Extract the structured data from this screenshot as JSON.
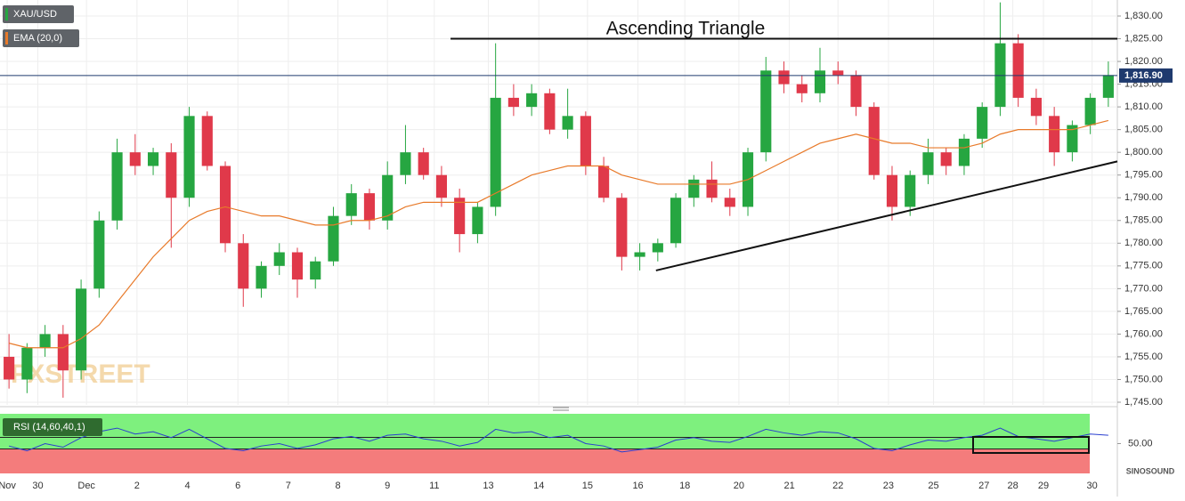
{
  "chart_data": {
    "type": "candlestick",
    "title": "Ascending Triangle",
    "symbol": "XAU/USD",
    "watermark": "FXSTREET",
    "logo": "SINOSOUND",
    "x": [
      0.5,
      1.5,
      2.5,
      3.5,
      4.5,
      5.5,
      6.5,
      7.5,
      8.5,
      9.5,
      10.5,
      11.5,
      12.5,
      13.5,
      14.5,
      15.5,
      16.5,
      17.5,
      18.5,
      19.5,
      20.5,
      21.5,
      22.5,
      23.5,
      24.5,
      25.5,
      26.5,
      27.5,
      28.5,
      29.5,
      30.5,
      31.5,
      32.5,
      33.5,
      34.5,
      35.5,
      36.5,
      37.5,
      38.5,
      39.5,
      40.5,
      41.5,
      42.5,
      43.5,
      44.5,
      45.5,
      46.5,
      47.5,
      48.5,
      49.5,
      50.5,
      51.5,
      52.5,
      53.5,
      54.5,
      55.5,
      56.5,
      57.5,
      58.5,
      59.5,
      60.5,
      61.5
    ],
    "open": [
      1755,
      1750,
      1757,
      1760,
      1752,
      1770,
      1785,
      1800,
      1797,
      1800,
      1790,
      1808,
      1797,
      1780,
      1770,
      1775,
      1778,
      1772,
      1776,
      1786,
      1791,
      1785,
      1795,
      1800,
      1795,
      1790,
      1782,
      1788,
      1812,
      1810,
      1813,
      1805,
      1808,
      1797,
      1790,
      1777,
      1778,
      1780,
      1790,
      1794,
      1790,
      1788,
      1800,
      1818,
      1815,
      1813,
      1818,
      1817,
      1810,
      1795,
      1788,
      1795,
      1800,
      1797,
      1803,
      1810,
      1824,
      1812,
      1808,
      1800,
      1806,
      1812
    ],
    "high": [
      1760,
      1758,
      1762,
      1762,
      1772,
      1787,
      1803,
      1804,
      1801,
      1802,
      1810,
      1809,
      1798,
      1782,
      1776,
      1780,
      1779,
      1777,
      1788,
      1793,
      1792,
      1798,
      1806,
      1801,
      1797,
      1792,
      1789,
      1824,
      1815,
      1815,
      1814,
      1814,
      1809,
      1799,
      1791,
      1780,
      1781,
      1791,
      1795,
      1798,
      1792,
      1801,
      1821,
      1820,
      1817,
      1823,
      1820,
      1818,
      1811,
      1797,
      1796,
      1803,
      1801,
      1804,
      1811,
      1833,
      1826,
      1814,
      1810,
      1807,
      1813,
      1820
    ],
    "low": [
      1748,
      1747,
      1755,
      1746,
      1750,
      1768,
      1783,
      1795,
      1795,
      1779,
      1788,
      1796,
      1778,
      1766,
      1768,
      1773,
      1768,
      1770,
      1775,
      1784,
      1783,
      1783,
      1793,
      1794,
      1788,
      1778,
      1780,
      1786,
      1808,
      1808,
      1804,
      1803,
      1795,
      1789,
      1774,
      1774,
      1776,
      1779,
      1788,
      1789,
      1786,
      1786,
      1798,
      1813,
      1811,
      1811,
      1815,
      1808,
      1794,
      1785,
      1786,
      1793,
      1795,
      1795,
      1801,
      1808,
      1810,
      1806,
      1797,
      1798,
      1804,
      1810
    ],
    "close": [
      1750,
      1757,
      1760,
      1752,
      1770,
      1785,
      1800,
      1797,
      1800,
      1790,
      1808,
      1797,
      1780,
      1770,
      1775,
      1778,
      1772,
      1776,
      1786,
      1791,
      1785,
      1795,
      1800,
      1795,
      1790,
      1782,
      1788,
      1812,
      1810,
      1813,
      1805,
      1808,
      1797,
      1790,
      1777,
      1778,
      1780,
      1790,
      1794,
      1790,
      1788,
      1800,
      1818,
      1815,
      1813,
      1818,
      1817,
      1810,
      1795,
      1788,
      1795,
      1800,
      1797,
      1803,
      1810,
      1824,
      1812,
      1808,
      1800,
      1806,
      1812,
      1817
    ],
    "up_color": "#26a641",
    "down_color": "#e0394a",
    "ema": {
      "name": "EMA (20,0)",
      "color": "#e87a2a",
      "values": [
        1758,
        1757,
        1757,
        1757,
        1759,
        1762,
        1767,
        1772,
        1777,
        1781,
        1785,
        1787,
        1788,
        1787,
        1786,
        1786,
        1785,
        1784,
        1784,
        1785,
        1785,
        1786,
        1788,
        1789,
        1789,
        1789,
        1789,
        1791,
        1793,
        1795,
        1796,
        1797,
        1797,
        1797,
        1795,
        1794,
        1793,
        1793,
        1793,
        1793,
        1793,
        1794,
        1796,
        1798,
        1800,
        1802,
        1803,
        1804,
        1803,
        1802,
        1802,
        1801,
        1801,
        1801,
        1802,
        1804,
        1805,
        1805,
        1805,
        1805,
        1806,
        1807
      ]
    },
    "last_price": {
      "value": 1816.9,
      "label": "1,816.90"
    },
    "resistance": {
      "value": 1825,
      "from": 25,
      "to": 62
    },
    "support": {
      "x": [
        36.4,
        62
      ],
      "values": [
        1774,
        1798
      ]
    },
    "xlim": [
      0,
      62
    ],
    "ylim": [
      1744,
      1833
    ],
    "yticks": [
      {
        "value": 1745,
        "label": "1,745.00"
      },
      {
        "value": 1750,
        "label": "1,750.00"
      },
      {
        "value": 1755,
        "label": "1,755.00"
      },
      {
        "value": 1760,
        "label": "1,760.00"
      },
      {
        "value": 1765,
        "label": "1,765.00"
      },
      {
        "value": 1770,
        "label": "1,770.00"
      },
      {
        "value": 1775,
        "label": "1,775.00"
      },
      {
        "value": 1780,
        "label": "1,780.00"
      },
      {
        "value": 1785,
        "label": "1,785.00"
      },
      {
        "value": 1790,
        "label": "1,790.00"
      },
      {
        "value": 1795,
        "label": "1,795.00"
      },
      {
        "value": 1800,
        "label": "1,800.00"
      },
      {
        "value": 1805,
        "label": "1,805.00"
      },
      {
        "value": 1810,
        "label": "1,810.00"
      },
      {
        "value": 1815,
        "label": "1,815.00"
      },
      {
        "value": 1820,
        "label": "1,820.00"
      },
      {
        "value": 1825,
        "label": "1,825.00"
      },
      {
        "value": 1830,
        "label": "1,830.00"
      }
    ],
    "xticks": [
      {
        "value": 0.4,
        "label": "Nov"
      },
      {
        "value": 2.1,
        "label": "30"
      },
      {
        "value": 4.8,
        "label": "Dec"
      },
      {
        "value": 7.6,
        "label": "2"
      },
      {
        "value": 10.4,
        "label": "4"
      },
      {
        "value": 13.2,
        "label": "6"
      },
      {
        "value": 16,
        "label": "7"
      },
      {
        "value": 18.75,
        "label": "8"
      },
      {
        "value": 21.5,
        "label": "9"
      },
      {
        "value": 24.1,
        "label": "11"
      },
      {
        "value": 27.1,
        "label": "13"
      },
      {
        "value": 29.9,
        "label": "14"
      },
      {
        "value": 32.6,
        "label": "15"
      },
      {
        "value": 35.4,
        "label": "16"
      },
      {
        "value": 38,
        "label": "18"
      },
      {
        "value": 41,
        "label": "20"
      },
      {
        "value": 43.8,
        "label": "21"
      },
      {
        "value": 46.5,
        "label": "22"
      },
      {
        "value": 49.3,
        "label": "23"
      },
      {
        "value": 51.8,
        "label": "25"
      },
      {
        "value": 54.6,
        "label": "27"
      },
      {
        "value": 56.2,
        "label": "28"
      },
      {
        "value": 57.9,
        "label": "29"
      },
      {
        "value": 60.6,
        "label": "30"
      }
    ],
    "rsi": {
      "name": "RSI (14,60,40,1)",
      "color": "#2a3fd0",
      "ylim": [
        25,
        75
      ],
      "yticks": [
        {
          "value": 50,
          "label": "50.00"
        }
      ],
      "values": [
        48,
        44,
        50,
        47,
        55,
        60,
        63,
        58,
        60,
        55,
        62,
        54,
        46,
        44,
        48,
        50,
        46,
        49,
        54,
        56,
        52,
        57,
        58,
        54,
        52,
        48,
        51,
        62,
        59,
        60,
        55,
        57,
        50,
        48,
        43,
        45,
        47,
        53,
        55,
        52,
        51,
        56,
        62,
        59,
        57,
        60,
        59,
        54,
        46,
        44,
        49,
        53,
        52,
        55,
        57,
        63,
        56,
        54,
        52,
        55,
        58,
        57
      ]
    }
  }
}
